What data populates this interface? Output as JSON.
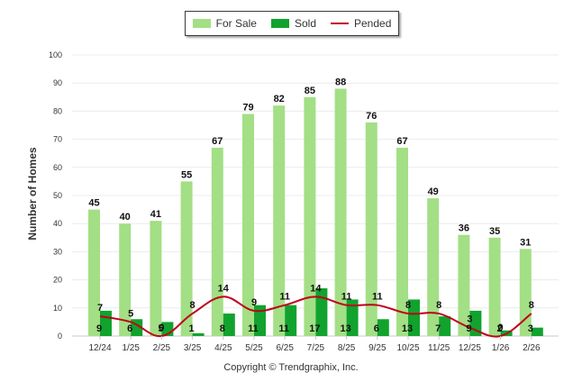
{
  "chart_data": {
    "type": "bar",
    "title": "",
    "xlabel": "",
    "ylabel": "Number of Homes",
    "ylim": [
      0,
      100
    ],
    "yticks": [
      "0",
      "10",
      "20",
      "30",
      "40",
      "50",
      "60",
      "70",
      "80",
      "90",
      "100"
    ],
    "categories": [
      "12/24",
      "1/25",
      "2/25",
      "3/25",
      "4/25",
      "5/25",
      "6/25",
      "7/25",
      "8/25",
      "9/25",
      "10/25",
      "11/25",
      "12/25",
      "1/26",
      "2/26"
    ],
    "series": [
      {
        "name": "For Sale",
        "kind": "bar",
        "color": "#a3df85",
        "values": [
          45,
          40,
          41,
          55,
          67,
          79,
          82,
          85,
          88,
          76,
          67,
          49,
          36,
          35,
          31
        ]
      },
      {
        "name": "Sold",
        "kind": "bar",
        "color": "#11a32e",
        "values": [
          9,
          6,
          5,
          1,
          8,
          11,
          11,
          17,
          13,
          6,
          13,
          7,
          9,
          2,
          3
        ]
      },
      {
        "name": "Pended",
        "kind": "line",
        "color": "#c0001a",
        "values": [
          7,
          5,
          0,
          8,
          14,
          9,
          11,
          14,
          11,
          11,
          8,
          8,
          3,
          0,
          8
        ]
      }
    ]
  },
  "legend": {
    "for_sale": "For Sale",
    "sold": "Sold",
    "pended": "Pended"
  },
  "footer": {
    "copyright": "Copyright © Trendgraphix, Inc."
  }
}
